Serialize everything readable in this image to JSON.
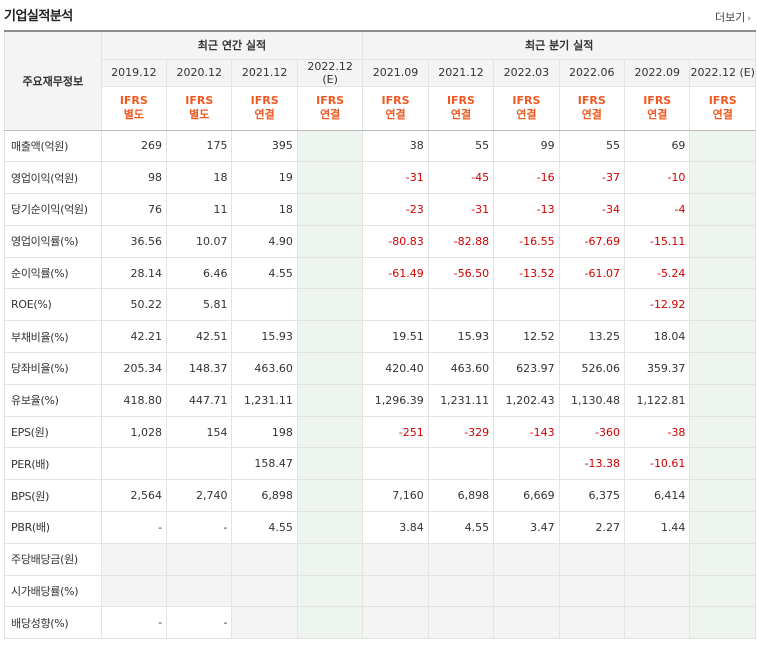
{
  "page": {
    "title": "기업실적분석",
    "more_label": "더보기"
  },
  "table": {
    "row_header": "주요재무정보",
    "annual_group": "최근 연간 실적",
    "quarter_group": "최근 분기 실적",
    "annual_periods": [
      "2019.12",
      "2020.12",
      "2021.12",
      "2022.12 (E)"
    ],
    "quarter_periods": [
      "2021.09",
      "2021.12",
      "2022.03",
      "2022.06",
      "2022.09",
      "2022.12 (E)"
    ],
    "annual_ifrs": [
      {
        "l1": "IFRS",
        "l2": "별도"
      },
      {
        "l1": "IFRS",
        "l2": "별도"
      },
      {
        "l1": "IFRS",
        "l2": "연결"
      },
      {
        "l1": "IFRS",
        "l2": "연결"
      }
    ],
    "quarter_ifrs": [
      {
        "l1": "IFRS",
        "l2": "연결"
      },
      {
        "l1": "IFRS",
        "l2": "연결"
      },
      {
        "l1": "IFRS",
        "l2": "연결"
      },
      {
        "l1": "IFRS",
        "l2": "연결"
      },
      {
        "l1": "IFRS",
        "l2": "연결"
      },
      {
        "l1": "IFRS",
        "l2": "연결"
      }
    ],
    "rows": [
      {
        "label": "매출액(억원)",
        "annual": [
          "269",
          "175",
          "395",
          ""
        ],
        "quarter": [
          "38",
          "55",
          "99",
          "55",
          "69",
          ""
        ]
      },
      {
        "label": "영업이익(억원)",
        "annual": [
          "98",
          "18",
          "19",
          ""
        ],
        "quarter": [
          "-31",
          "-45",
          "-16",
          "-37",
          "-10",
          ""
        ]
      },
      {
        "label": "당기순이익(억원)",
        "annual": [
          "76",
          "11",
          "18",
          ""
        ],
        "quarter": [
          "-23",
          "-31",
          "-13",
          "-34",
          "-4",
          ""
        ]
      },
      {
        "label": "영업이익률(%)",
        "annual": [
          "36.56",
          "10.07",
          "4.90",
          ""
        ],
        "quarter": [
          "-80.83",
          "-82.88",
          "-16.55",
          "-67.69",
          "-15.11",
          ""
        ]
      },
      {
        "label": "순이익률(%)",
        "annual": [
          "28.14",
          "6.46",
          "4.55",
          ""
        ],
        "quarter": [
          "-61.49",
          "-56.50",
          "-13.52",
          "-61.07",
          "-5.24",
          ""
        ]
      },
      {
        "label": "ROE(%)",
        "annual": [
          "50.22",
          "5.81",
          "",
          ""
        ],
        "quarter": [
          "",
          "",
          "",
          "",
          "-12.92",
          ""
        ]
      },
      {
        "label": "부채비율(%)",
        "annual": [
          "42.21",
          "42.51",
          "15.93",
          ""
        ],
        "quarter": [
          "19.51",
          "15.93",
          "12.52",
          "13.25",
          "18.04",
          ""
        ]
      },
      {
        "label": "당좌비율(%)",
        "annual": [
          "205.34",
          "148.37",
          "463.60",
          ""
        ],
        "quarter": [
          "420.40",
          "463.60",
          "623.97",
          "526.06",
          "359.37",
          ""
        ]
      },
      {
        "label": "유보율(%)",
        "annual": [
          "418.80",
          "447.71",
          "1,231.11",
          ""
        ],
        "quarter": [
          "1,296.39",
          "1,231.11",
          "1,202.43",
          "1,130.48",
          "1,122.81",
          ""
        ]
      },
      {
        "label": "EPS(원)",
        "annual": [
          "1,028",
          "154",
          "198",
          ""
        ],
        "quarter": [
          "-251",
          "-329",
          "-143",
          "-360",
          "-38",
          ""
        ]
      },
      {
        "label": "PER(배)",
        "annual": [
          "",
          "",
          "158.47",
          ""
        ],
        "quarter": [
          "",
          "",
          "",
          "-13.38",
          "-10.61",
          ""
        ]
      },
      {
        "label": "BPS(원)",
        "annual": [
          "2,564",
          "2,740",
          "6,898",
          ""
        ],
        "quarter": [
          "7,160",
          "6,898",
          "6,669",
          "6,375",
          "6,414",
          ""
        ]
      },
      {
        "label": "PBR(배)",
        "annual": [
          "-",
          "-",
          "4.55",
          ""
        ],
        "quarter": [
          "3.84",
          "4.55",
          "3.47",
          "2.27",
          "1.44",
          ""
        ]
      },
      {
        "label": "주당배당금(원)",
        "annual": [
          "",
          "",
          "",
          ""
        ],
        "quarter": [
          "",
          "",
          "",
          "",
          "",
          ""
        ]
      },
      {
        "label": "시가배당률(%)",
        "annual": [
          "",
          "",
          "",
          ""
        ],
        "quarter": [
          "",
          "",
          "",
          "",
          "",
          ""
        ]
      },
      {
        "label": "배당성향(%)",
        "annual": [
          "-",
          "-",
          "",
          ""
        ],
        "quarter": [
          "",
          "",
          "",
          "",
          "",
          ""
        ]
      }
    ],
    "section_breaks": [
      3,
      6,
      9,
      13
    ],
    "shaded_rows": [
      13,
      14,
      15
    ],
    "colors": {
      "negative": "#d00000",
      "ifrs": "#f05a22",
      "estimate_bg": "#eef5ee",
      "header_bg": "#f4f4f4"
    }
  }
}
